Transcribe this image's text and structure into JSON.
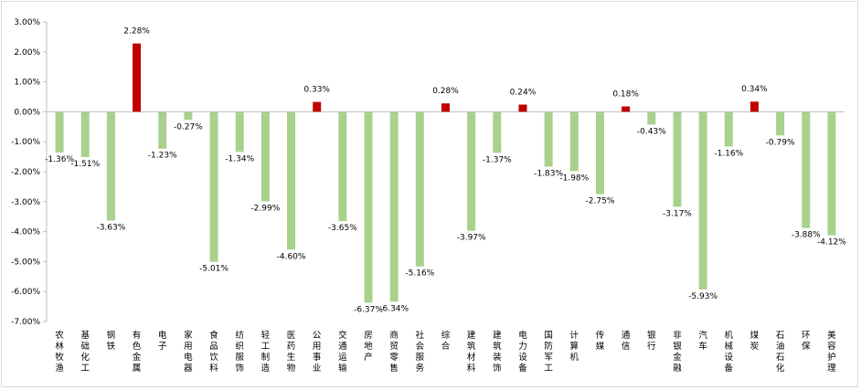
{
  "chart_data": {
    "type": "bar",
    "categories": [
      "农林牧渔",
      "基础化工",
      "钢铁",
      "有色金属",
      "电子",
      "家用电器",
      "食品饮料",
      "纺织服饰",
      "轻工制造",
      "医药生物",
      "公用事业",
      "交通运输",
      "房地产",
      "商贸零售",
      "社会服务",
      "综合",
      "建筑材料",
      "建筑装饰",
      "电力设备",
      "国防军工",
      "计算机",
      "传媒",
      "通信",
      "银行",
      "非银金融",
      "汽车",
      "机械设备",
      "煤炭",
      "石油石化",
      "环保",
      "美容护理"
    ],
    "values": [
      -1.36,
      -1.51,
      -3.63,
      2.28,
      -1.23,
      -0.27,
      -5.01,
      -1.34,
      -2.99,
      -4.6,
      0.33,
      -3.65,
      -6.37,
      -6.34,
      -5.16,
      0.28,
      -3.97,
      -1.37,
      0.24,
      -1.83,
      -1.98,
      -2.75,
      0.18,
      -0.43,
      -3.17,
      -5.93,
      -1.16,
      0.34,
      -0.79,
      -3.88,
      -4.12
    ],
    "data_labels": [
      "-1.36%",
      "-1.51%",
      "-3.63%",
      "2.28%",
      "-1.23%",
      "-0.27%",
      "-5.01%",
      "-1.34%",
      "-2.99%",
      "-4.60%",
      "0.33%",
      "-3.65%",
      "-6.37%",
      "-6.34%",
      "-5.16%",
      "0.28%",
      "-3.97%",
      "-1.37%",
      "0.24%",
      "-1.83%",
      "-1.98%",
      "-2.75%",
      "0.18%",
      "-0.43%",
      "-3.17%",
      "-5.93%",
      "-1.16%",
      "0.34%",
      "-0.79%",
      "-3.88%",
      "-4.12%"
    ],
    "y_ticks": [
      "3.00%",
      "2.00%",
      "1.00%",
      "0.00%",
      "-1.00%",
      "-2.00%",
      "-3.00%",
      "-4.00%",
      "-5.00%",
      "-6.00%",
      "-7.00%"
    ],
    "ylim": [
      -7,
      3
    ],
    "grid": false,
    "colors": {
      "positive": "#C00000",
      "negative": "#A9D18E",
      "axis": "#BFBFBF"
    }
  }
}
